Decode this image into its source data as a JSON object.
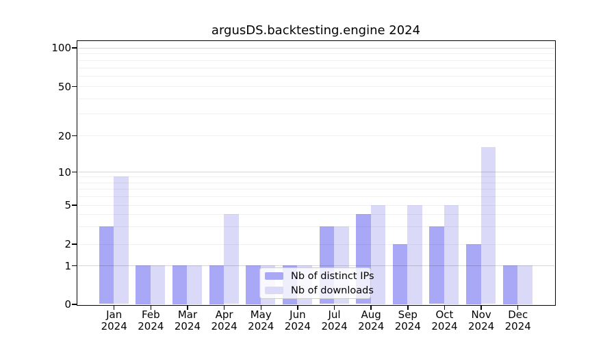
{
  "chart_data": {
    "type": "bar",
    "title": "argusDS.backtesting.engine 2024",
    "scale": "symlog",
    "categories": [
      "Jan",
      "Feb",
      "Mar",
      "Apr",
      "May",
      "Jun",
      "Jul",
      "Aug",
      "Sep",
      "Oct",
      "Nov",
      "Dec"
    ],
    "year_label": "2024",
    "series": [
      {
        "name": "Nb of distinct IPs",
        "color": "#a8a8f6",
        "values": [
          3,
          1,
          1,
          1,
          1,
          1,
          3,
          4,
          2,
          3,
          2,
          1
        ]
      },
      {
        "name": "Nb of downloads",
        "color": "#dadaf8",
        "values": [
          9,
          1,
          1,
          4,
          1,
          1,
          3,
          5,
          5,
          5,
          16,
          1
        ]
      }
    ],
    "y_ticks": [
      0,
      1,
      2,
      5,
      10,
      20,
      50,
      100
    ],
    "major_gridlines": [
      1,
      10,
      100
    ],
    "minor_gridlines": [
      2,
      3,
      4,
      5,
      6,
      7,
      8,
      9,
      20,
      30,
      40,
      50,
      60,
      70,
      80,
      90
    ],
    "ylim": [
      0,
      113
    ],
    "grid": true,
    "legend_position": "lower center",
    "xlabel": "",
    "ylabel": ""
  }
}
